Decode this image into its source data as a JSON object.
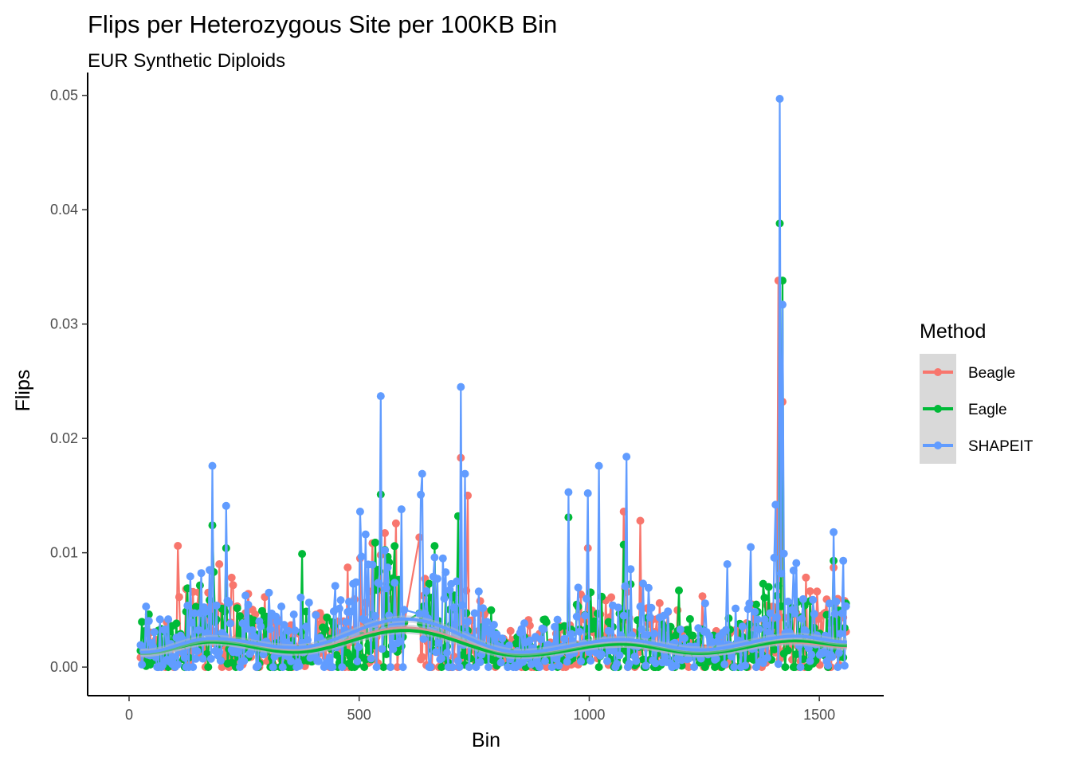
{
  "chart_data": {
    "type": "line",
    "title": "Flips per Heterozygous Site per 100KB Bin",
    "subtitle": "EUR Synthetic Diploids",
    "xlabel": "Bin",
    "ylabel": "Flips",
    "xlim": [
      -90,
      1640
    ],
    "ylim": [
      -0.0025,
      0.052
    ],
    "x_ticks": [
      0,
      500,
      1000,
      1500
    ],
    "y_ticks": [
      0.0,
      0.01,
      0.02,
      0.03,
      0.04,
      0.05
    ],
    "x_tick_labels": [
      "0",
      "500",
      "1000",
      "1500"
    ],
    "y_tick_labels": [
      "0.00",
      "0.01",
      "0.02",
      "0.03",
      "0.04",
      "0.05"
    ],
    "grid": false,
    "legend": {
      "title": "Method",
      "position": "right"
    },
    "series": [
      {
        "name": "Beagle",
        "color": "#F8766D",
        "peaks": [
          {
            "x": 105,
            "y": 0.0106
          },
          {
            "x": 195,
            "y": 0.009
          },
          {
            "x": 500,
            "y": 0.0095
          },
          {
            "x": 545,
            "y": 0.0098
          },
          {
            "x": 720,
            "y": 0.0183
          },
          {
            "x": 735,
            "y": 0.015
          },
          {
            "x": 995,
            "y": 0.0104
          },
          {
            "x": 1075,
            "y": 0.0136
          },
          {
            "x": 1110,
            "y": 0.0128
          },
          {
            "x": 1245,
            "y": 0.0062
          },
          {
            "x": 1410,
            "y": 0.0338
          },
          {
            "x": 1418,
            "y": 0.0232
          },
          {
            "x": 1530,
            "y": 0.0087
          }
        ],
        "trend": [
          {
            "x": 30,
            "y": 0.0012
          },
          {
            "x": 180,
            "y": 0.0022
          },
          {
            "x": 360,
            "y": 0.0014
          },
          {
            "x": 600,
            "y": 0.0034
          },
          {
            "x": 850,
            "y": 0.0011
          },
          {
            "x": 1070,
            "y": 0.002
          },
          {
            "x": 1240,
            "y": 0.0012
          },
          {
            "x": 1440,
            "y": 0.0022
          },
          {
            "x": 1560,
            "y": 0.0018
          }
        ]
      },
      {
        "name": "Eagle",
        "color": "#00BA38",
        "peaks": [
          {
            "x": 180,
            "y": 0.0124
          },
          {
            "x": 210,
            "y": 0.0104
          },
          {
            "x": 375,
            "y": 0.0099
          },
          {
            "x": 545,
            "y": 0.0151
          },
          {
            "x": 715,
            "y": 0.0132
          },
          {
            "x": 955,
            "y": 0.0131
          },
          {
            "x": 1075,
            "y": 0.0107
          },
          {
            "x": 1195,
            "y": 0.0067
          },
          {
            "x": 1413,
            "y": 0.0388
          },
          {
            "x": 1420,
            "y": 0.0338
          },
          {
            "x": 1530,
            "y": 0.0093
          }
        ],
        "trend": [
          {
            "x": 30,
            "y": 0.0012
          },
          {
            "x": 180,
            "y": 0.0022
          },
          {
            "x": 360,
            "y": 0.0013
          },
          {
            "x": 600,
            "y": 0.0032
          },
          {
            "x": 850,
            "y": 0.001
          },
          {
            "x": 1070,
            "y": 0.002
          },
          {
            "x": 1240,
            "y": 0.0012
          },
          {
            "x": 1450,
            "y": 0.0023
          },
          {
            "x": 1560,
            "y": 0.0019
          }
        ]
      },
      {
        "name": "SHAPEIT",
        "color": "#619CFF",
        "peaks": [
          {
            "x": 35,
            "y": 0.0053
          },
          {
            "x": 180,
            "y": 0.0176
          },
          {
            "x": 210,
            "y": 0.0141
          },
          {
            "x": 500,
            "y": 0.0136
          },
          {
            "x": 545,
            "y": 0.0237
          },
          {
            "x": 590,
            "y": 0.0138
          },
          {
            "x": 635,
            "y": 0.0169
          },
          {
            "x": 720,
            "y": 0.0245
          },
          {
            "x": 730,
            "y": 0.0169
          },
          {
            "x": 955,
            "y": 0.0153
          },
          {
            "x": 995,
            "y": 0.0152
          },
          {
            "x": 1020,
            "y": 0.0176
          },
          {
            "x": 1080,
            "y": 0.0184
          },
          {
            "x": 1300,
            "y": 0.009
          },
          {
            "x": 1350,
            "y": 0.0105
          },
          {
            "x": 1405,
            "y": 0.0142
          },
          {
            "x": 1413,
            "y": 0.0497
          },
          {
            "x": 1420,
            "y": 0.0317
          },
          {
            "x": 1530,
            "y": 0.0118
          },
          {
            "x": 1550,
            "y": 0.0093
          }
        ],
        "trend": [
          {
            "x": 30,
            "y": 0.0013
          },
          {
            "x": 180,
            "y": 0.0025
          },
          {
            "x": 360,
            "y": 0.0017
          },
          {
            "x": 600,
            "y": 0.0042
          },
          {
            "x": 850,
            "y": 0.0013
          },
          {
            "x": 1070,
            "y": 0.0024
          },
          {
            "x": 1240,
            "y": 0.0015
          },
          {
            "x": 1450,
            "y": 0.0027
          },
          {
            "x": 1560,
            "y": 0.0022
          }
        ]
      }
    ],
    "x_range_observed": [
      25,
      1560
    ]
  }
}
